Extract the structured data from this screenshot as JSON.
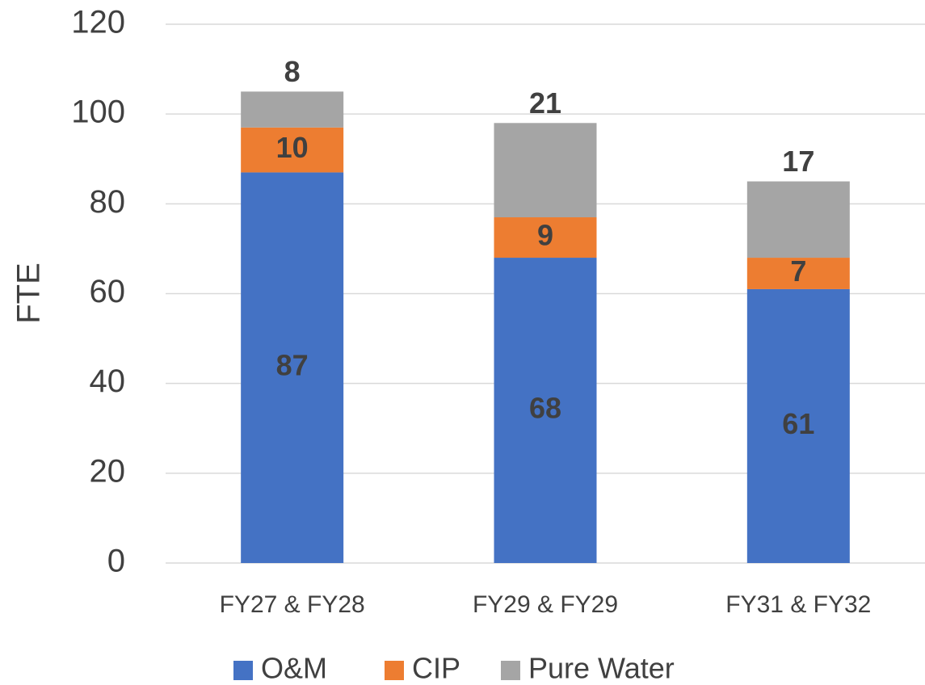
{
  "chart_data": {
    "type": "stacked_bar",
    "y_label": "FTE",
    "categories": [
      "FY27 & FY28",
      "FY29 & FY29",
      "FY31 & FY32"
    ],
    "series": [
      {
        "name": "O&M",
        "color": "#4472c4",
        "values": [
          87,
          68,
          61
        ]
      },
      {
        "name": "CIP",
        "color": "#ed7d31",
        "values": [
          10,
          9,
          7
        ]
      },
      {
        "name": "Pure Water",
        "color": "#a5a5a5",
        "values": [
          8,
          21,
          17
        ]
      }
    ],
    "ylim": [
      0,
      120
    ],
    "yticks": [
      0,
      20,
      40,
      60,
      80,
      100,
      120
    ],
    "grid": true,
    "legend": "bottom"
  }
}
